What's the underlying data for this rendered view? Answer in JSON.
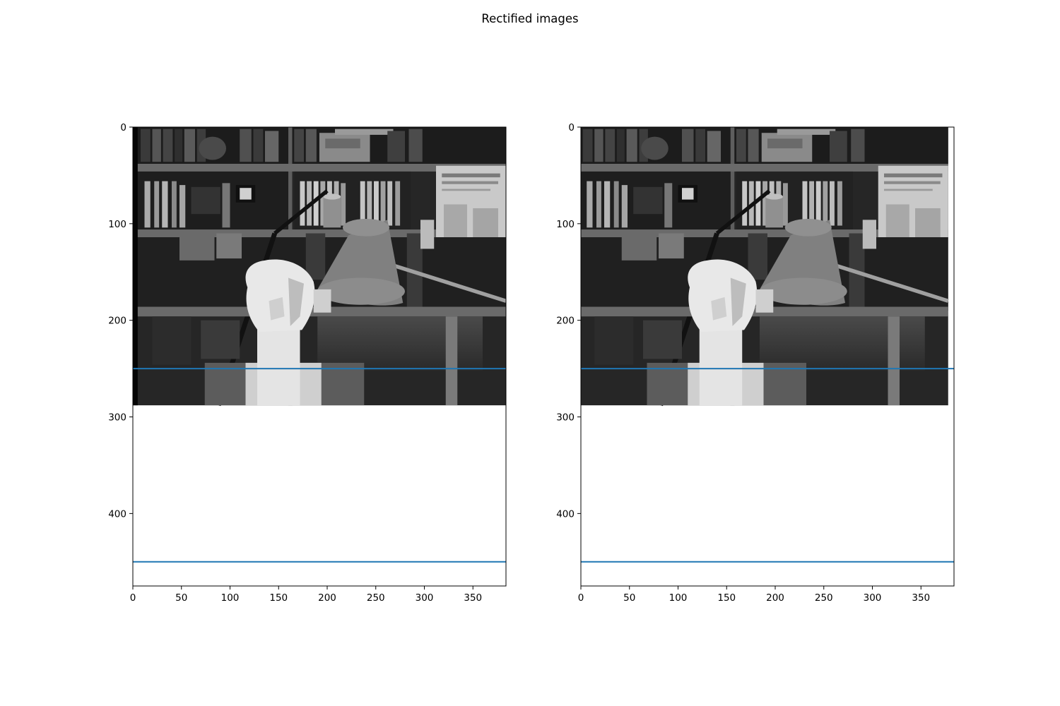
{
  "figure": {
    "title": "Rectified images"
  },
  "colors": {
    "epiline": "#1f77b4",
    "axes": "#000000"
  },
  "chart_data": [
    {
      "type": "image",
      "image": {
        "width": 384,
        "height": 288,
        "content": "grayscale stereo photo (left view) of a bookshelf scene with a plaster head and a desk lamp"
      },
      "xlim": [
        0,
        384
      ],
      "ylim": [
        475,
        0
      ],
      "xticks": [
        0,
        50,
        100,
        150,
        200,
        250,
        300,
        350
      ],
      "yticks": [
        0,
        100,
        200,
        300,
        400
      ],
      "epilines_y": [
        250,
        450
      ],
      "shift": 0
    },
    {
      "type": "image",
      "image": {
        "width": 384,
        "height": 288,
        "content": "grayscale stereo photo (right view) of the same scene"
      },
      "xlim": [
        0,
        384
      ],
      "ylim": [
        475,
        0
      ],
      "xticks": [
        0,
        50,
        100,
        150,
        200,
        250,
        300,
        350
      ],
      "yticks": [
        0,
        100,
        200,
        300,
        400
      ],
      "epilines_y": [
        250,
        450
      ],
      "shift": -6
    }
  ]
}
